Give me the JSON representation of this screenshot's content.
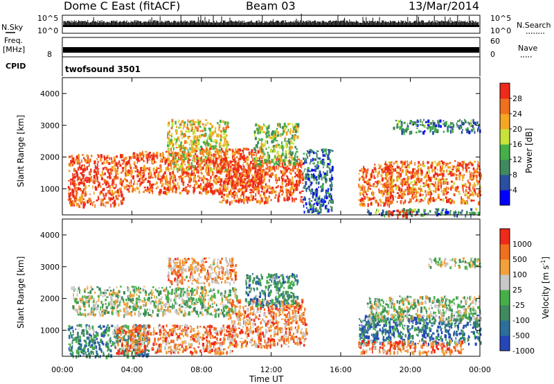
{
  "header": {
    "station": "Dome C East (fitACF)",
    "beam": "Beam 03",
    "date": "13/Mar/2014"
  },
  "nsky_panel": {
    "label": "N.Sky",
    "right_label": "N.Search",
    "tick_top": "10^5",
    "tick_bottom": "10^0"
  },
  "freq_panel": {
    "label_line1": "Freq.",
    "label_line2": "[MHz]",
    "right_label": "Nave",
    "left_tick": "8",
    "right_tick_top": "60",
    "right_tick_bottom": "0"
  },
  "cpid_panel": {
    "label": "CPID",
    "program": "twofsound 3501"
  },
  "x_axis": {
    "label": "Time UT",
    "ticks": [
      "00:00",
      "04:00",
      "08:00",
      "12:00",
      "16:00",
      "20:00",
      "00:00"
    ]
  },
  "chart_data": [
    {
      "type": "heatmap",
      "name": "power",
      "ylabel": "Slant Range [km]",
      "yticks": [
        "1000",
        "2000",
        "3000",
        "4000"
      ],
      "ylim": [
        180,
        4500
      ],
      "xlim_hours": [
        0,
        24
      ],
      "colorbar": {
        "label": "Power [dB]",
        "ticks": [
          "4",
          "8",
          "12",
          "16",
          "20",
          "24",
          "28"
        ],
        "range": [
          0,
          30
        ],
        "colors": [
          "#0000ff",
          "#2a4fa0",
          "#3f8a5e",
          "#46b048",
          "#c8e33b",
          "#f5a623",
          "#f07020",
          "#ee2a1a"
        ]
      },
      "regions": [
        {
          "t0": 0.3,
          "t1": 3.5,
          "r0": 500,
          "r1": 2100,
          "level": 0.9
        },
        {
          "t0": 3.5,
          "t1": 7.5,
          "r0": 900,
          "r1": 2200,
          "level": 0.85
        },
        {
          "t0": 6.0,
          "t1": 9.5,
          "r0": 1600,
          "r1": 3200,
          "level": 0.6
        },
        {
          "t0": 7.5,
          "t1": 11.5,
          "r0": 900,
          "r1": 2300,
          "level": 0.85
        },
        {
          "t0": 9.0,
          "t1": 13.8,
          "r0": 600,
          "r1": 2000,
          "level": 0.9
        },
        {
          "t0": 11.0,
          "t1": 13.5,
          "r0": 1800,
          "r1": 3100,
          "level": 0.5
        },
        {
          "t0": 13.8,
          "t1": 15.5,
          "r0": 250,
          "r1": 2300,
          "level": 0.25
        },
        {
          "t0": 17.0,
          "t1": 19.0,
          "r0": 500,
          "r1": 1800,
          "level": 0.85
        },
        {
          "t0": 18.5,
          "t1": 24.0,
          "r0": 600,
          "r1": 1900,
          "level": 0.8
        },
        {
          "t0": 17.5,
          "t1": 24.0,
          "r0": 200,
          "r1": 400,
          "level": 0.3
        },
        {
          "t0": 19.0,
          "t1": 24.0,
          "r0": 2800,
          "r1": 3200,
          "level": 0.3
        },
        {
          "t0": 18.7,
          "t1": 20.3,
          "r0": 180,
          "r1": 350,
          "level": 0.95
        }
      ]
    },
    {
      "type": "heatmap",
      "name": "velocity",
      "ylabel": "Slant Range [km]",
      "yticks": [
        "1000",
        "2000",
        "3000",
        "4000"
      ],
      "ylim": [
        180,
        4500
      ],
      "xlim_hours": [
        0,
        24
      ],
      "colorbar": {
        "label": "Velocity [m s^-1]",
        "ticks": [
          "1000",
          "500",
          "100",
          "25",
          "-25",
          "-100",
          "-500",
          "-1000"
        ],
        "colors": [
          "#2646b8",
          "#2b6f9b",
          "#3f8a5e",
          "#46b048",
          "#c8c8c8",
          "#f2a13a",
          "#f07020",
          "#ee2a1a"
        ]
      },
      "regions": [
        {
          "t0": 0.3,
          "t1": 5.0,
          "r0": 200,
          "r1": 1200,
          "level": 0.3
        },
        {
          "t0": 0.5,
          "t1": 10.0,
          "r0": 1500,
          "r1": 2400,
          "level": 0.5
        },
        {
          "t0": 3.0,
          "t1": 10.0,
          "r0": 300,
          "r1": 1200,
          "level": 0.78
        },
        {
          "t0": 6.0,
          "t1": 10.0,
          "r0": 2500,
          "r1": 3300,
          "level": 0.72
        },
        {
          "t0": 9.5,
          "t1": 14.0,
          "r0": 500,
          "r1": 2000,
          "level": 0.75
        },
        {
          "t0": 10.5,
          "t1": 13.5,
          "r0": 1800,
          "r1": 2800,
          "level": 0.3
        },
        {
          "t0": 17.0,
          "t1": 24.0,
          "r0": 600,
          "r1": 1500,
          "level": 0.2
        },
        {
          "t0": 17.5,
          "t1": 24.0,
          "r0": 1300,
          "r1": 2100,
          "level": 0.5
        },
        {
          "t0": 17.0,
          "t1": 23.0,
          "r0": 300,
          "r1": 700,
          "level": 0.8
        },
        {
          "t0": 21.0,
          "t1": 24.0,
          "r0": 3000,
          "r1": 3300,
          "level": 0.5
        }
      ]
    }
  ]
}
